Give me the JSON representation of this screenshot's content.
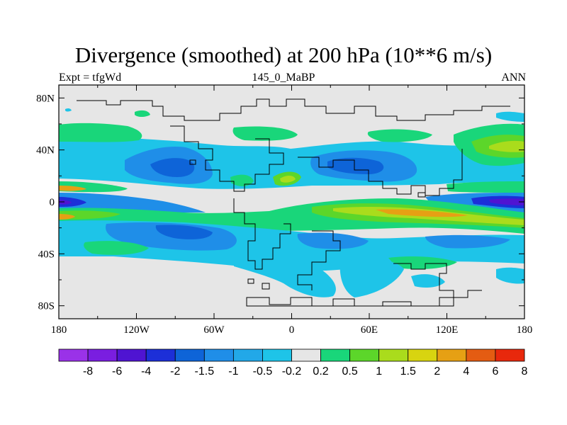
{
  "title": "Divergence (smoothed) at 200 hPa (10**6 m/s)",
  "subtitle_left": "Expt = tfgWd",
  "subtitle_center": "145_0_MaBP",
  "subtitle_right": "ANN",
  "lon_ticks": [
    {
      "value": -180,
      "label": "180"
    },
    {
      "value": -120,
      "label": "120W"
    },
    {
      "value": -60,
      "label": "60W"
    },
    {
      "value": 0,
      "label": "0"
    },
    {
      "value": 60,
      "label": "60E"
    },
    {
      "value": 120,
      "label": "120E"
    },
    {
      "value": 180,
      "label": "180"
    }
  ],
  "lat_ticks": [
    {
      "value": 80,
      "label": "80N"
    },
    {
      "value": 40,
      "label": "40N"
    },
    {
      "value": 0,
      "label": "0"
    },
    {
      "value": -40,
      "label": "40S"
    },
    {
      "value": -80,
      "label": "80S"
    }
  ],
  "colorbar": {
    "colors": [
      "#9a32e8",
      "#7a1ee0",
      "#4f14d2",
      "#1c2fd8",
      "#0e64d8",
      "#1f8ee8",
      "#22a8e8",
      "#1ec4e8",
      "#e6e6e6",
      "#19d67a",
      "#5cd62a",
      "#aadc1c",
      "#d8d410",
      "#e6a014",
      "#e45c12",
      "#e8280c"
    ],
    "labels": [
      "-8",
      "-6",
      "-4",
      "-2",
      "-1.5",
      "-1",
      "-0.5",
      "-0.2",
      "0.2",
      "0.5",
      "1",
      "1.5",
      "2",
      "4",
      "6",
      "8"
    ]
  },
  "fill_background": "#e6e6e6"
}
